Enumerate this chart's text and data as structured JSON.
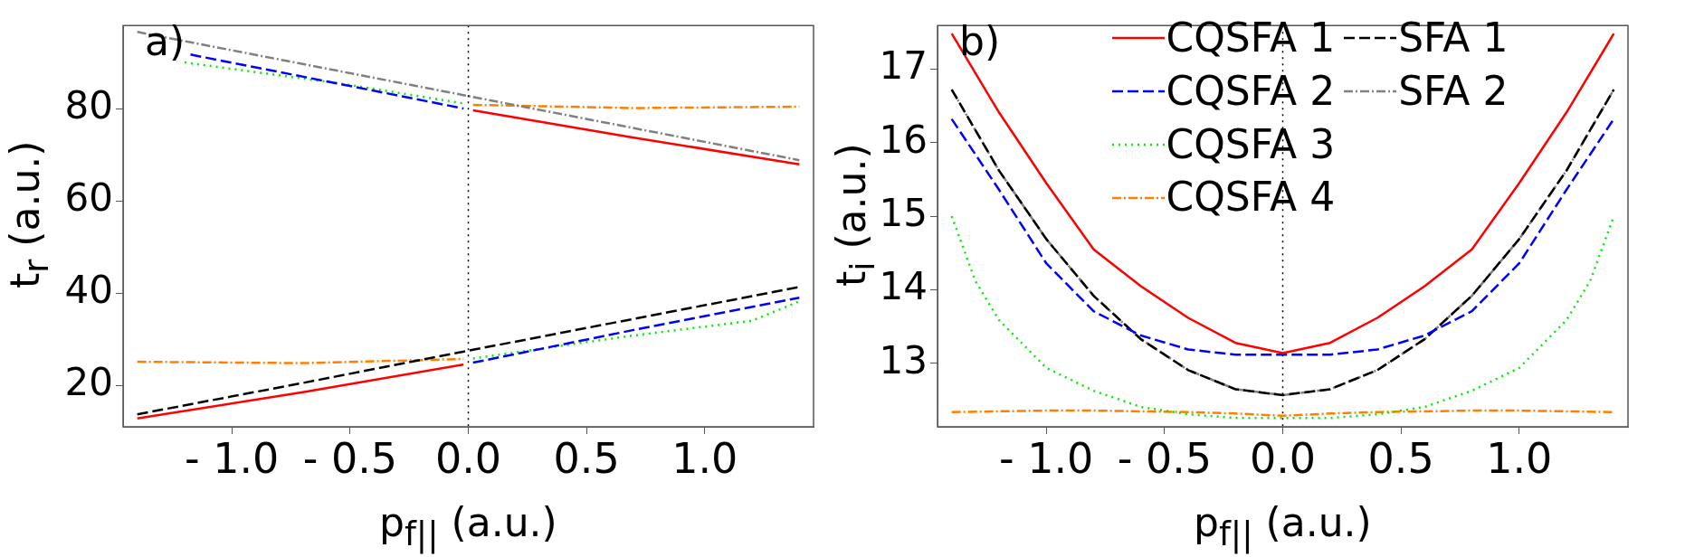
{
  "chart_data": [
    {
      "type": "line",
      "xlabel": "p$_{f||}$ (a.u.)",
      "ylabel": "t$_{r}$ (a.u.)",
      "annotations": [
        "a)"
      ],
      "xlim": [
        -1.46,
        1.46
      ],
      "xticks": [
        {
          "value": -1,
          "label": "- 1.0"
        },
        {
          "value": -0.5,
          "label": "- 0.5"
        },
        {
          "value": 0,
          "label": "0.0"
        },
        {
          "value": 0.5,
          "label": "0.5"
        },
        {
          "value": 1,
          "label": "1.0"
        }
      ],
      "ylim": [
        11,
        98
      ],
      "yticks": [
        20,
        40,
        60,
        80
      ],
      "grid": false,
      "legend": false,
      "marker": "none",
      "ref_lines": [
        {
          "axis": "x",
          "value": 0,
          "color": "#000000",
          "line_style": "dotted"
        }
      ],
      "series": [
        {
          "color": "#000000",
          "line_style": "dashed",
          "x": [
            -1.4,
            -0.7,
            0,
            0.7,
            1.4
          ],
          "values": [
            13.7,
            20.5,
            27.5,
            34.4,
            41.3
          ]
        },
        {
          "color": "#808080",
          "line_style": "dashdot",
          "x": [
            -1.4,
            0,
            1.4
          ],
          "values": [
            96.6,
            82.7,
            68.8
          ]
        },
        {
          "color": "#ff0000",
          "line_style": "solid",
          "x": [
            -1.4,
            -0.7,
            -0.02,
            0,
            0.02,
            0.7,
            1.4
          ],
          "values": [
            12.8,
            18.5,
            24.5,
            null,
            79.6,
            73.7,
            67.9
          ]
        },
        {
          "color": "#0000ff",
          "line_style": "dashed",
          "x": [
            -1.175,
            -0.6,
            -0.02,
            0,
            0.02,
            0.7,
            1.4
          ],
          "values": [
            91.7,
            85.9,
            80.0,
            null,
            24.9,
            32.0,
            39.0
          ]
        },
        {
          "color": "#00ee00",
          "line_style": "dotted",
          "x": [
            -1.2,
            -0.5,
            -0.02,
            0,
            0.02,
            0.7,
            1.2,
            1.4
          ],
          "values": [
            90.0,
            85.1,
            81.1,
            null,
            25.8,
            30.8,
            34.0,
            38.2
          ]
        },
        {
          "color": "#ff8000",
          "line_style": "dashdot",
          "x": [
            -1.4,
            -0.7,
            -0.02,
            0,
            0.02,
            0.7,
            1.4
          ],
          "values": [
            25.1,
            24.8,
            25.7,
            null,
            80.8,
            80.1,
            80.4
          ]
        }
      ]
    },
    {
      "type": "line",
      "xlabel": "p$_{f||}$ (a.u.)",
      "ylabel": "t$_{i}$ (a.u.)",
      "annotations": [
        "b)"
      ],
      "xlim": [
        -1.46,
        1.46
      ],
      "xticks": [
        {
          "value": -1,
          "label": "- 1.0"
        },
        {
          "value": -0.5,
          "label": "- 0.5"
        },
        {
          "value": 0,
          "label": "0.0"
        },
        {
          "value": 0.5,
          "label": "0.5"
        },
        {
          "value": 1,
          "label": "1.0"
        }
      ],
      "ylim": [
        12.14,
        17.59
      ],
      "yticks": [
        13,
        14,
        15,
        16,
        17
      ],
      "grid": false,
      "legend": "top",
      "marker": "none",
      "ref_lines": [
        {
          "axis": "x",
          "value": 0,
          "color": "#000000",
          "line_style": "dotted"
        }
      ],
      "x": [
        -1.4,
        -1.2,
        -1.0,
        -0.8,
        -0.6,
        -0.4,
        -0.2,
        0,
        0.2,
        0.4,
        0.6,
        0.8,
        1.0,
        1.2,
        1.4
      ],
      "series": [
        {
          "name": "CQSFA 1",
          "color": "#ff0000",
          "line_style": "solid",
          "values": [
            17.48,
            16.41,
            15.45,
            14.55,
            14.05,
            13.62,
            13.28,
            13.14,
            13.28,
            13.62,
            14.05,
            14.55,
            15.45,
            16.41,
            17.48
          ]
        },
        {
          "name": "CQSFA 2",
          "color": "#0000ff",
          "line_style": "dashed",
          "values": [
            16.32,
            15.36,
            14.36,
            13.71,
            13.38,
            13.19,
            13.12,
            13.12,
            13.12,
            13.19,
            13.38,
            13.71,
            14.36,
            15.36,
            16.32
          ]
        },
        {
          "name": "CQSFA 3",
          "color": "#00ee00",
          "line_style": "dotted",
          "x": [
            -1.4,
            -1.3,
            -1.2,
            -1.0,
            -0.8,
            -0.6,
            -0.4,
            -0.2,
            0,
            0.2,
            0.4,
            0.6,
            0.8,
            1.0,
            1.2,
            1.3,
            1.4
          ],
          "values": [
            15.0,
            14.12,
            13.59,
            12.94,
            12.63,
            12.41,
            12.31,
            12.26,
            12.26,
            12.26,
            12.31,
            12.41,
            12.63,
            12.94,
            13.59,
            14.12,
            15.0
          ]
        },
        {
          "name": "CQSFA 4",
          "color": "#ff8000",
          "line_style": "dashdot",
          "values": [
            12.34,
            12.35,
            12.36,
            12.36,
            12.35,
            12.34,
            12.32,
            12.29,
            12.32,
            12.34,
            12.35,
            12.36,
            12.36,
            12.35,
            12.34
          ]
        },
        {
          "name": "SFA 1",
          "color": "#000000",
          "line_style": "dashed",
          "values": [
            16.72,
            15.62,
            14.69,
            13.92,
            13.33,
            12.91,
            12.65,
            12.57,
            12.65,
            12.91,
            13.33,
            13.92,
            14.69,
            15.62,
            16.72
          ]
        },
        {
          "name": "SFA 2",
          "color": "#808080",
          "line_style": "dashdot",
          "values": [
            16.72,
            15.62,
            14.69,
            13.92,
            13.33,
            12.91,
            12.65,
            12.57,
            12.65,
            12.91,
            13.33,
            13.92,
            14.69,
            15.62,
            16.72
          ]
        }
      ]
    }
  ]
}
